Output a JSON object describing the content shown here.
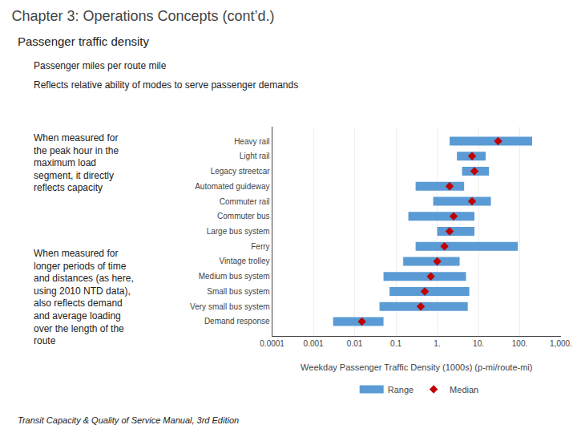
{
  "chart_data": {
    "type": "bar",
    "orientation": "horizontal",
    "title": "Chapter 3: Operations Concepts (cont’d.)",
    "annotations": [
      "Passenger traffic density",
      "Passenger miles per route mile",
      "Reflects relative ability of modes to serve passenger demands",
      "When measured for\nthe peak hour in the\nmaximum load\nsegment, it directly\nreflects capacity",
      "When measured for\nlonger periods of time\nand distances (as here,\nusing 2010 NTD data),\nalso reflects demand\nand average loading\nover the length of the\nroute",
      "Transit Capacity & Quality of Service Manual, 3rd Edition"
    ],
    "xlabel": "Weekday Passenger Traffic Density (1000s) (p-mi/route-mi)",
    "categories": [
      "Heavy rail",
      "Light rail",
      "Legacy streetcar",
      "Automated guideway",
      "Commuter rail",
      "Commuter bus",
      "Large bus system",
      "Ferry",
      "Vintage trolley",
      "Medium bus system",
      "Small bus system",
      "Very small bus system",
      "Demand response"
    ],
    "series": [
      {
        "name": "Range",
        "type": "bar",
        "color": "#5b9bd5",
        "values": [
          [
            2.0,
            200.0
          ],
          [
            3.0,
            15.0
          ],
          [
            4.0,
            18.0
          ],
          [
            0.3,
            4.5
          ],
          [
            0.8,
            20.0
          ],
          [
            0.2,
            8.0
          ],
          [
            1.0,
            8.0
          ],
          [
            0.3,
            90.0
          ],
          [
            0.15,
            3.5
          ],
          [
            0.05,
            5.0
          ],
          [
            0.07,
            6.0
          ],
          [
            0.04,
            5.5
          ],
          [
            0.003,
            0.05
          ]
        ]
      },
      {
        "name": "Median",
        "type": "scatter",
        "marker": "diamond",
        "color": "#c00000",
        "values": [
          30.0,
          7.0,
          8.0,
          2.0,
          7.0,
          2.5,
          2.0,
          1.5,
          1.0,
          0.7,
          0.5,
          0.4,
          0.015
        ]
      }
    ],
    "log": "x",
    "xlim": [
      0.0001,
      1000
    ],
    "xticks": [
      0.0001,
      0.001,
      0.01,
      0.1,
      {
        "value": 1,
        "label": "1."
      },
      {
        "value": 10,
        "label": "10."
      },
      {
        "value": 100,
        "label": "100."
      },
      {
        "value": 1000,
        "label": "1,000."
      }
    ],
    "grid": "x",
    "legend": "bottom"
  }
}
